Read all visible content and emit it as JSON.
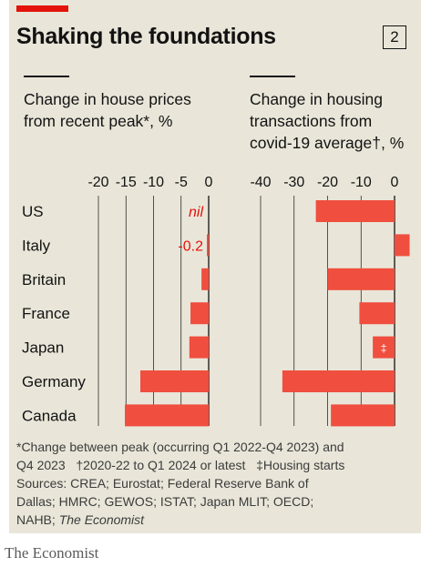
{
  "header": {
    "title": "Shaking the foundations",
    "chart_number": "2"
  },
  "colors": {
    "background": "#e9e6d9",
    "accent": "#e3120b",
    "bar": "#f04e3e",
    "text": "#121212",
    "grid": "#121212"
  },
  "chart_data": [
    {
      "type": "bar",
      "orientation": "horizontal",
      "title_lines": [
        "Change in house prices",
        "from recent peak*, %"
      ],
      "categories": [
        "US",
        "Italy",
        "Britain",
        "France",
        "Japan",
        "Germany",
        "Canada"
      ],
      "values": [
        0,
        -0.2,
        -1.3,
        -3.3,
        -3.5,
        -12.4,
        -15.2
      ],
      "data_labels": [
        "nil",
        "-0.2",
        "",
        "",
        "",
        "",
        ""
      ],
      "xlim": [
        -20,
        0
      ],
      "xticks": [
        -20,
        -15,
        -10,
        -5,
        0
      ],
      "tick_labels": [
        "-20",
        "-15",
        "-10",
        "-5",
        "0"
      ],
      "grid": true
    },
    {
      "type": "bar",
      "orientation": "horizontal",
      "title_lines": [
        "Change in housing",
        "transactions from",
        "covid-19 average†, %"
      ],
      "categories": [
        "US",
        "Italy",
        "Britain",
        "France",
        "Japan",
        "Germany",
        "Canada"
      ],
      "values": [
        -23.5,
        4.5,
        -20,
        -10.5,
        -6.5,
        -33.5,
        -19
      ],
      "data_labels": [
        "",
        "",
        "",
        "",
        "‡",
        "",
        ""
      ],
      "xlim": [
        -40,
        0
      ],
      "xticks": [
        -40,
        -30,
        -20,
        -10,
        0
      ],
      "tick_labels": [
        "-40",
        "-30",
        "-20",
        "-10",
        "0"
      ],
      "grid": true
    }
  ],
  "notes": {
    "line1": "*Change between peak (occurring Q1 2022-Q4 2023) and",
    "line2": "Q4 2023   †2020-22 to Q1 2024 or latest   ‡Housing starts",
    "line3": "Sources: CREA; Eurostat; Federal Reserve Bank of",
    "line4": "Dallas; HMRC; GEWOS; ISTAT; Japan MLIT; OECD;",
    "line5_prefix": "NAHB; ",
    "line5_italic": "The Economist"
  },
  "footer": {
    "brand": "The Economist"
  }
}
